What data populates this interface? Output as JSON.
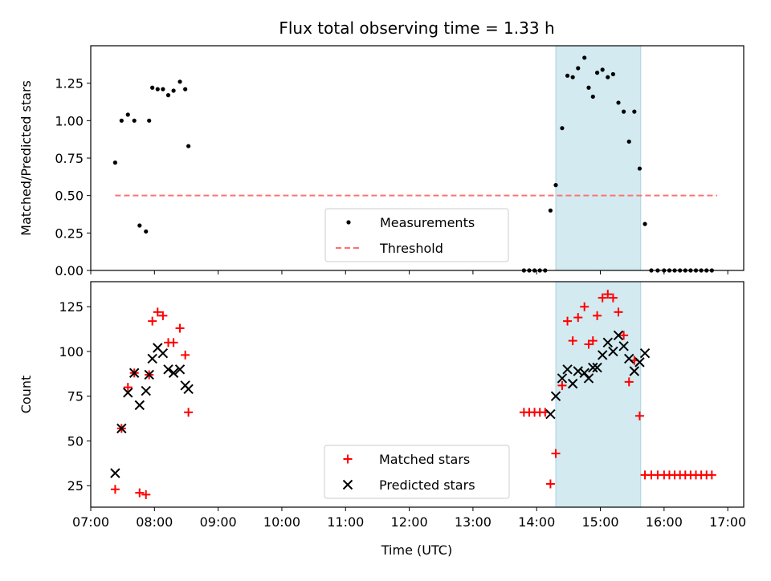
{
  "chart_data": {
    "title": "Flux total observing time = 1.33 h",
    "shaded_region": {
      "start": "14:18",
      "end": "15:38",
      "color": "#d3eaf0"
    },
    "xlabel": "Time (UTC)",
    "xlim": [
      "07:00",
      "17:15"
    ],
    "x_ticks": [
      "07:00",
      "08:00",
      "09:00",
      "10:00",
      "11:00",
      "12:00",
      "13:00",
      "14:00",
      "15:00",
      "16:00",
      "17:00"
    ],
    "panels": [
      {
        "type": "scatter",
        "ylabel": "Matched/Predicted stars",
        "ylim": [
          0,
          1.5
        ],
        "y_ticks": [
          "0.00",
          "0.25",
          "0.50",
          "0.75",
          "1.00",
          "1.25"
        ],
        "legend_position": "lower-center",
        "threshold": {
          "name": "Threshold",
          "value": 0.5,
          "start": "07:23",
          "end": "16:50",
          "color": "#ff7070"
        },
        "series": [
          {
            "name": "Measurements",
            "color": "#000000",
            "marker": "dot",
            "points": [
              [
                "07:23",
                0.72
              ],
              [
                "07:29",
                1.0
              ],
              [
                "07:35",
                1.04
              ],
              [
                "07:41",
                1.0
              ],
              [
                "07:46",
                0.3
              ],
              [
                "07:52",
                0.26
              ],
              [
                "07:55",
                1.0
              ],
              [
                "07:58",
                1.22
              ],
              [
                "08:03",
                1.21
              ],
              [
                "08:08",
                1.21
              ],
              [
                "08:13",
                1.17
              ],
              [
                "08:18",
                1.2
              ],
              [
                "08:24",
                1.26
              ],
              [
                "08:29",
                1.21
              ],
              [
                "08:32",
                0.83
              ],
              [
                "13:48",
                0.0
              ],
              [
                "13:53",
                0.0
              ],
              [
                "13:58",
                0.0
              ],
              [
                "14:03",
                0.0
              ],
              [
                "14:08",
                0.0
              ],
              [
                "14:13",
                0.4
              ],
              [
                "14:18",
                0.57
              ],
              [
                "14:24",
                0.95
              ],
              [
                "14:29",
                1.3
              ],
              [
                "14:34",
                1.29
              ],
              [
                "14:39",
                1.35
              ],
              [
                "14:45",
                1.42
              ],
              [
                "14:49",
                1.22
              ],
              [
                "14:53",
                1.16
              ],
              [
                "14:57",
                1.32
              ],
              [
                "15:02",
                1.34
              ],
              [
                "15:07",
                1.29
              ],
              [
                "15:12",
                1.31
              ],
              [
                "15:17",
                1.12
              ],
              [
                "15:22",
                1.06
              ],
              [
                "15:27",
                0.86
              ],
              [
                "15:32",
                1.06
              ],
              [
                "15:37",
                0.68
              ],
              [
                "15:42",
                0.31
              ],
              [
                "15:48",
                0.0
              ],
              [
                "15:54",
                0.0
              ],
              [
                "16:00",
                0.0
              ],
              [
                "16:05",
                0.0
              ],
              [
                "16:10",
                0.0
              ],
              [
                "16:15",
                0.0
              ],
              [
                "16:20",
                0.0
              ],
              [
                "16:25",
                0.0
              ],
              [
                "16:30",
                0.0
              ],
              [
                "16:35",
                0.0
              ],
              [
                "16:40",
                0.0
              ],
              [
                "16:45",
                0.0
              ]
            ]
          }
        ]
      },
      {
        "type": "scatter",
        "ylabel": "Count",
        "ylim": [
          13,
          139
        ],
        "y_ticks": [
          "25",
          "50",
          "75",
          "100",
          "125"
        ],
        "legend_position": "lower-center",
        "series": [
          {
            "name": "Matched stars",
            "color": "#ff0000",
            "marker": "plus",
            "points": [
              [
                "07:23",
                23
              ],
              [
                "07:29",
                57
              ],
              [
                "07:35",
                80
              ],
              [
                "07:41",
                88
              ],
              [
                "07:46",
                21
              ],
              [
                "07:52",
                20
              ],
              [
                "07:55",
                87
              ],
              [
                "07:58",
                117
              ],
              [
                "08:03",
                122
              ],
              [
                "08:08",
                120
              ],
              [
                "08:13",
                105
              ],
              [
                "08:18",
                105
              ],
              [
                "08:24",
                113
              ],
              [
                "08:29",
                98
              ],
              [
                "08:32",
                66
              ],
              [
                "13:48",
                66
              ],
              [
                "13:53",
                66
              ],
              [
                "13:58",
                66
              ],
              [
                "14:03",
                66
              ],
              [
                "14:08",
                66
              ],
              [
                "14:13",
                26
              ],
              [
                "14:18",
                43
              ],
              [
                "14:24",
                81
              ],
              [
                "14:29",
                117
              ],
              [
                "14:34",
                106
              ],
              [
                "14:39",
                119
              ],
              [
                "14:45",
                125
              ],
              [
                "14:49",
                104
              ],
              [
                "14:53",
                106
              ],
              [
                "14:57",
                120
              ],
              [
                "15:02",
                130
              ],
              [
                "15:07",
                132
              ],
              [
                "15:12",
                130
              ],
              [
                "15:17",
                122
              ],
              [
                "15:22",
                109
              ],
              [
                "15:27",
                83
              ],
              [
                "15:32",
                95
              ],
              [
                "15:37",
                64
              ],
              [
                "15:42",
                31
              ],
              [
                "15:48",
                31
              ],
              [
                "15:54",
                31
              ],
              [
                "16:00",
                31
              ],
              [
                "16:05",
                31
              ],
              [
                "16:10",
                31
              ],
              [
                "16:15",
                31
              ],
              [
                "16:20",
                31
              ],
              [
                "16:25",
                31
              ],
              [
                "16:30",
                31
              ],
              [
                "16:35",
                31
              ],
              [
                "16:40",
                31
              ],
              [
                "16:45",
                31
              ]
            ]
          },
          {
            "name": "Predicted stars",
            "color": "#000000",
            "marker": "x",
            "points": [
              [
                "07:23",
                32
              ],
              [
                "07:29",
                57
              ],
              [
                "07:35",
                77
              ],
              [
                "07:41",
                88
              ],
              [
                "07:46",
                70
              ],
              [
                "07:52",
                78
              ],
              [
                "07:55",
                87
              ],
              [
                "07:58",
                96
              ],
              [
                "08:03",
                102
              ],
              [
                "08:08",
                99
              ],
              [
                "08:13",
                90
              ],
              [
                "08:18",
                88
              ],
              [
                "08:24",
                90
              ],
              [
                "08:29",
                81
              ],
              [
                "08:32",
                79
              ],
              [
                "14:13",
                65
              ],
              [
                "14:18",
                75
              ],
              [
                "14:24",
                85
              ],
              [
                "14:29",
                90
              ],
              [
                "14:34",
                82
              ],
              [
                "14:39",
                89
              ],
              [
                "14:45",
                88
              ],
              [
                "14:49",
                85
              ],
              [
                "14:53",
                91
              ],
              [
                "14:57",
                91
              ],
              [
                "15:02",
                98
              ],
              [
                "15:07",
                105
              ],
              [
                "15:12",
                100
              ],
              [
                "15:17",
                109
              ],
              [
                "15:22",
                103
              ],
              [
                "15:27",
                96
              ],
              [
                "15:32",
                89
              ],
              [
                "15:37",
                94
              ],
              [
                "15:42",
                99
              ]
            ]
          }
        ]
      }
    ]
  }
}
